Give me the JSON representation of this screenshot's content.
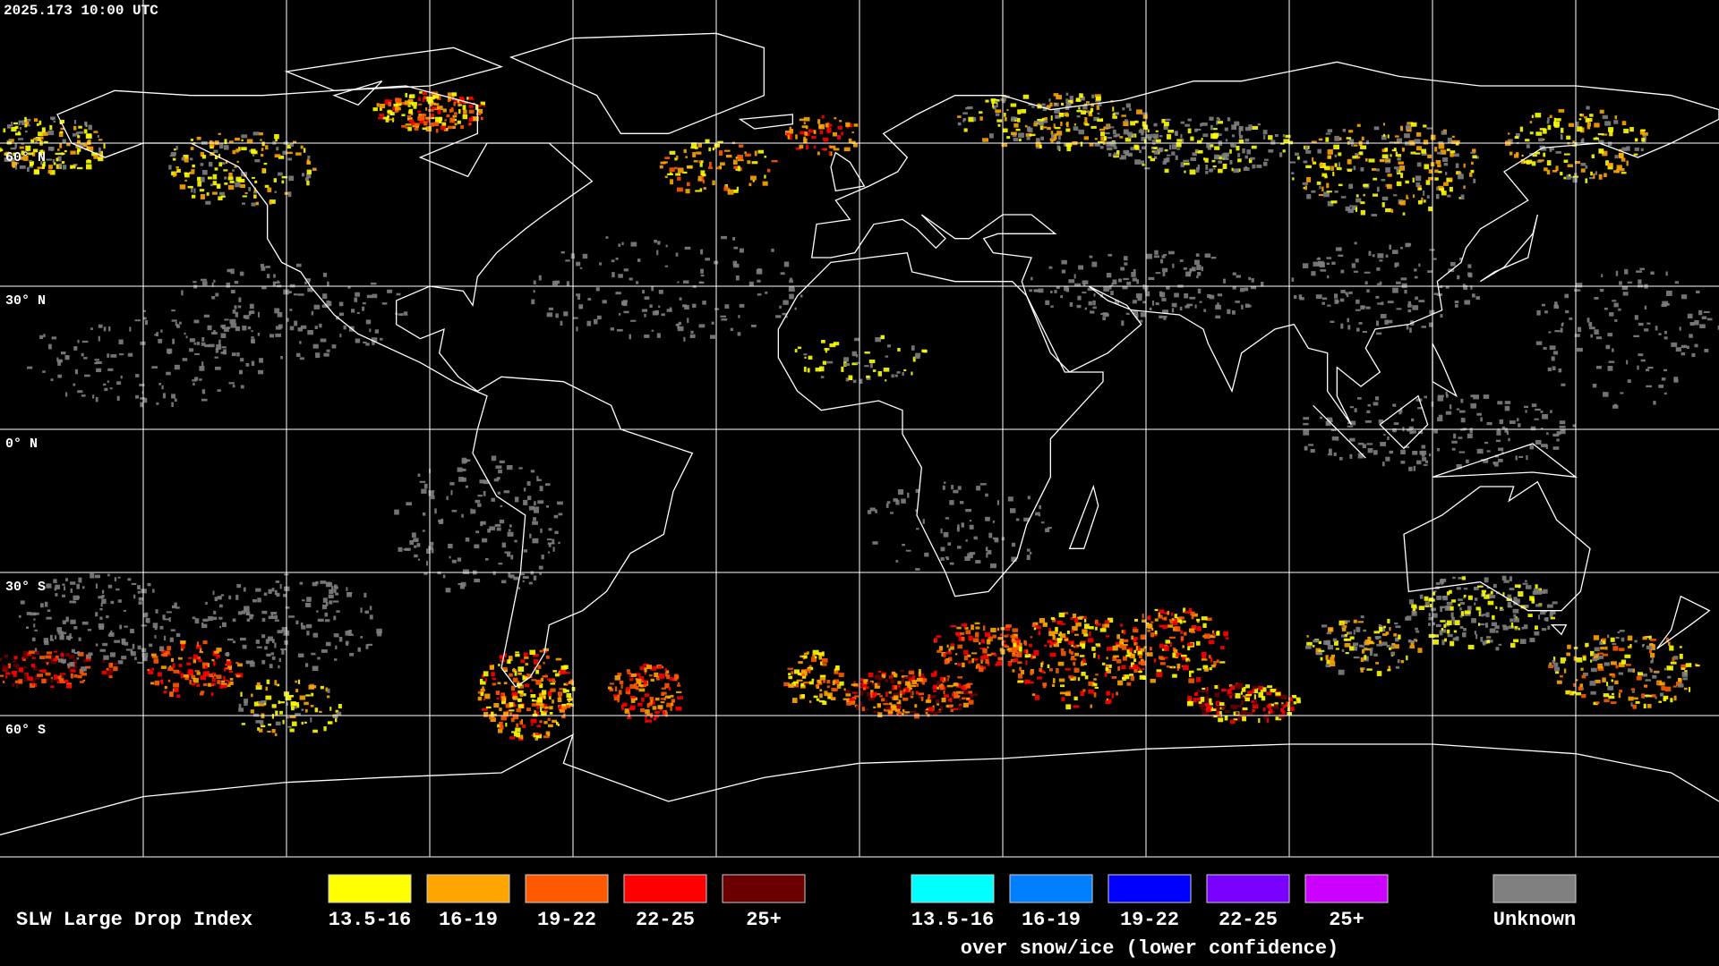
{
  "header": {
    "timestamp": "2025.173 10:00 UTC"
  },
  "map": {
    "lat_labels": [
      "60° N",
      "30° N",
      "0° N",
      "30° S",
      "60° S"
    ]
  },
  "legend": {
    "title": "SLW Large Drop Index",
    "groups": [
      {
        "items": [
          {
            "label": "13.5-16",
            "color": "#ffff00"
          },
          {
            "label": "16-19",
            "color": "#ffa500"
          },
          {
            "label": "19-22",
            "color": "#ff5a00"
          },
          {
            "label": "22-25",
            "color": "#ff0000"
          },
          {
            "label": "25+",
            "color": "#6b0000"
          }
        ]
      },
      {
        "items": [
          {
            "label": "13.5-16",
            "color": "#00ffff"
          },
          {
            "label": "16-19",
            "color": "#0080ff"
          },
          {
            "label": "19-22",
            "color": "#0000ff"
          },
          {
            "label": "22-25",
            "color": "#7a00ff"
          },
          {
            "label": "25+",
            "color": "#cc00ff"
          }
        ],
        "caption": "over snow/ice (lower confidence)"
      },
      {
        "items": [
          {
            "label": "Unknown",
            "color": "#808080"
          }
        ]
      }
    ]
  }
}
